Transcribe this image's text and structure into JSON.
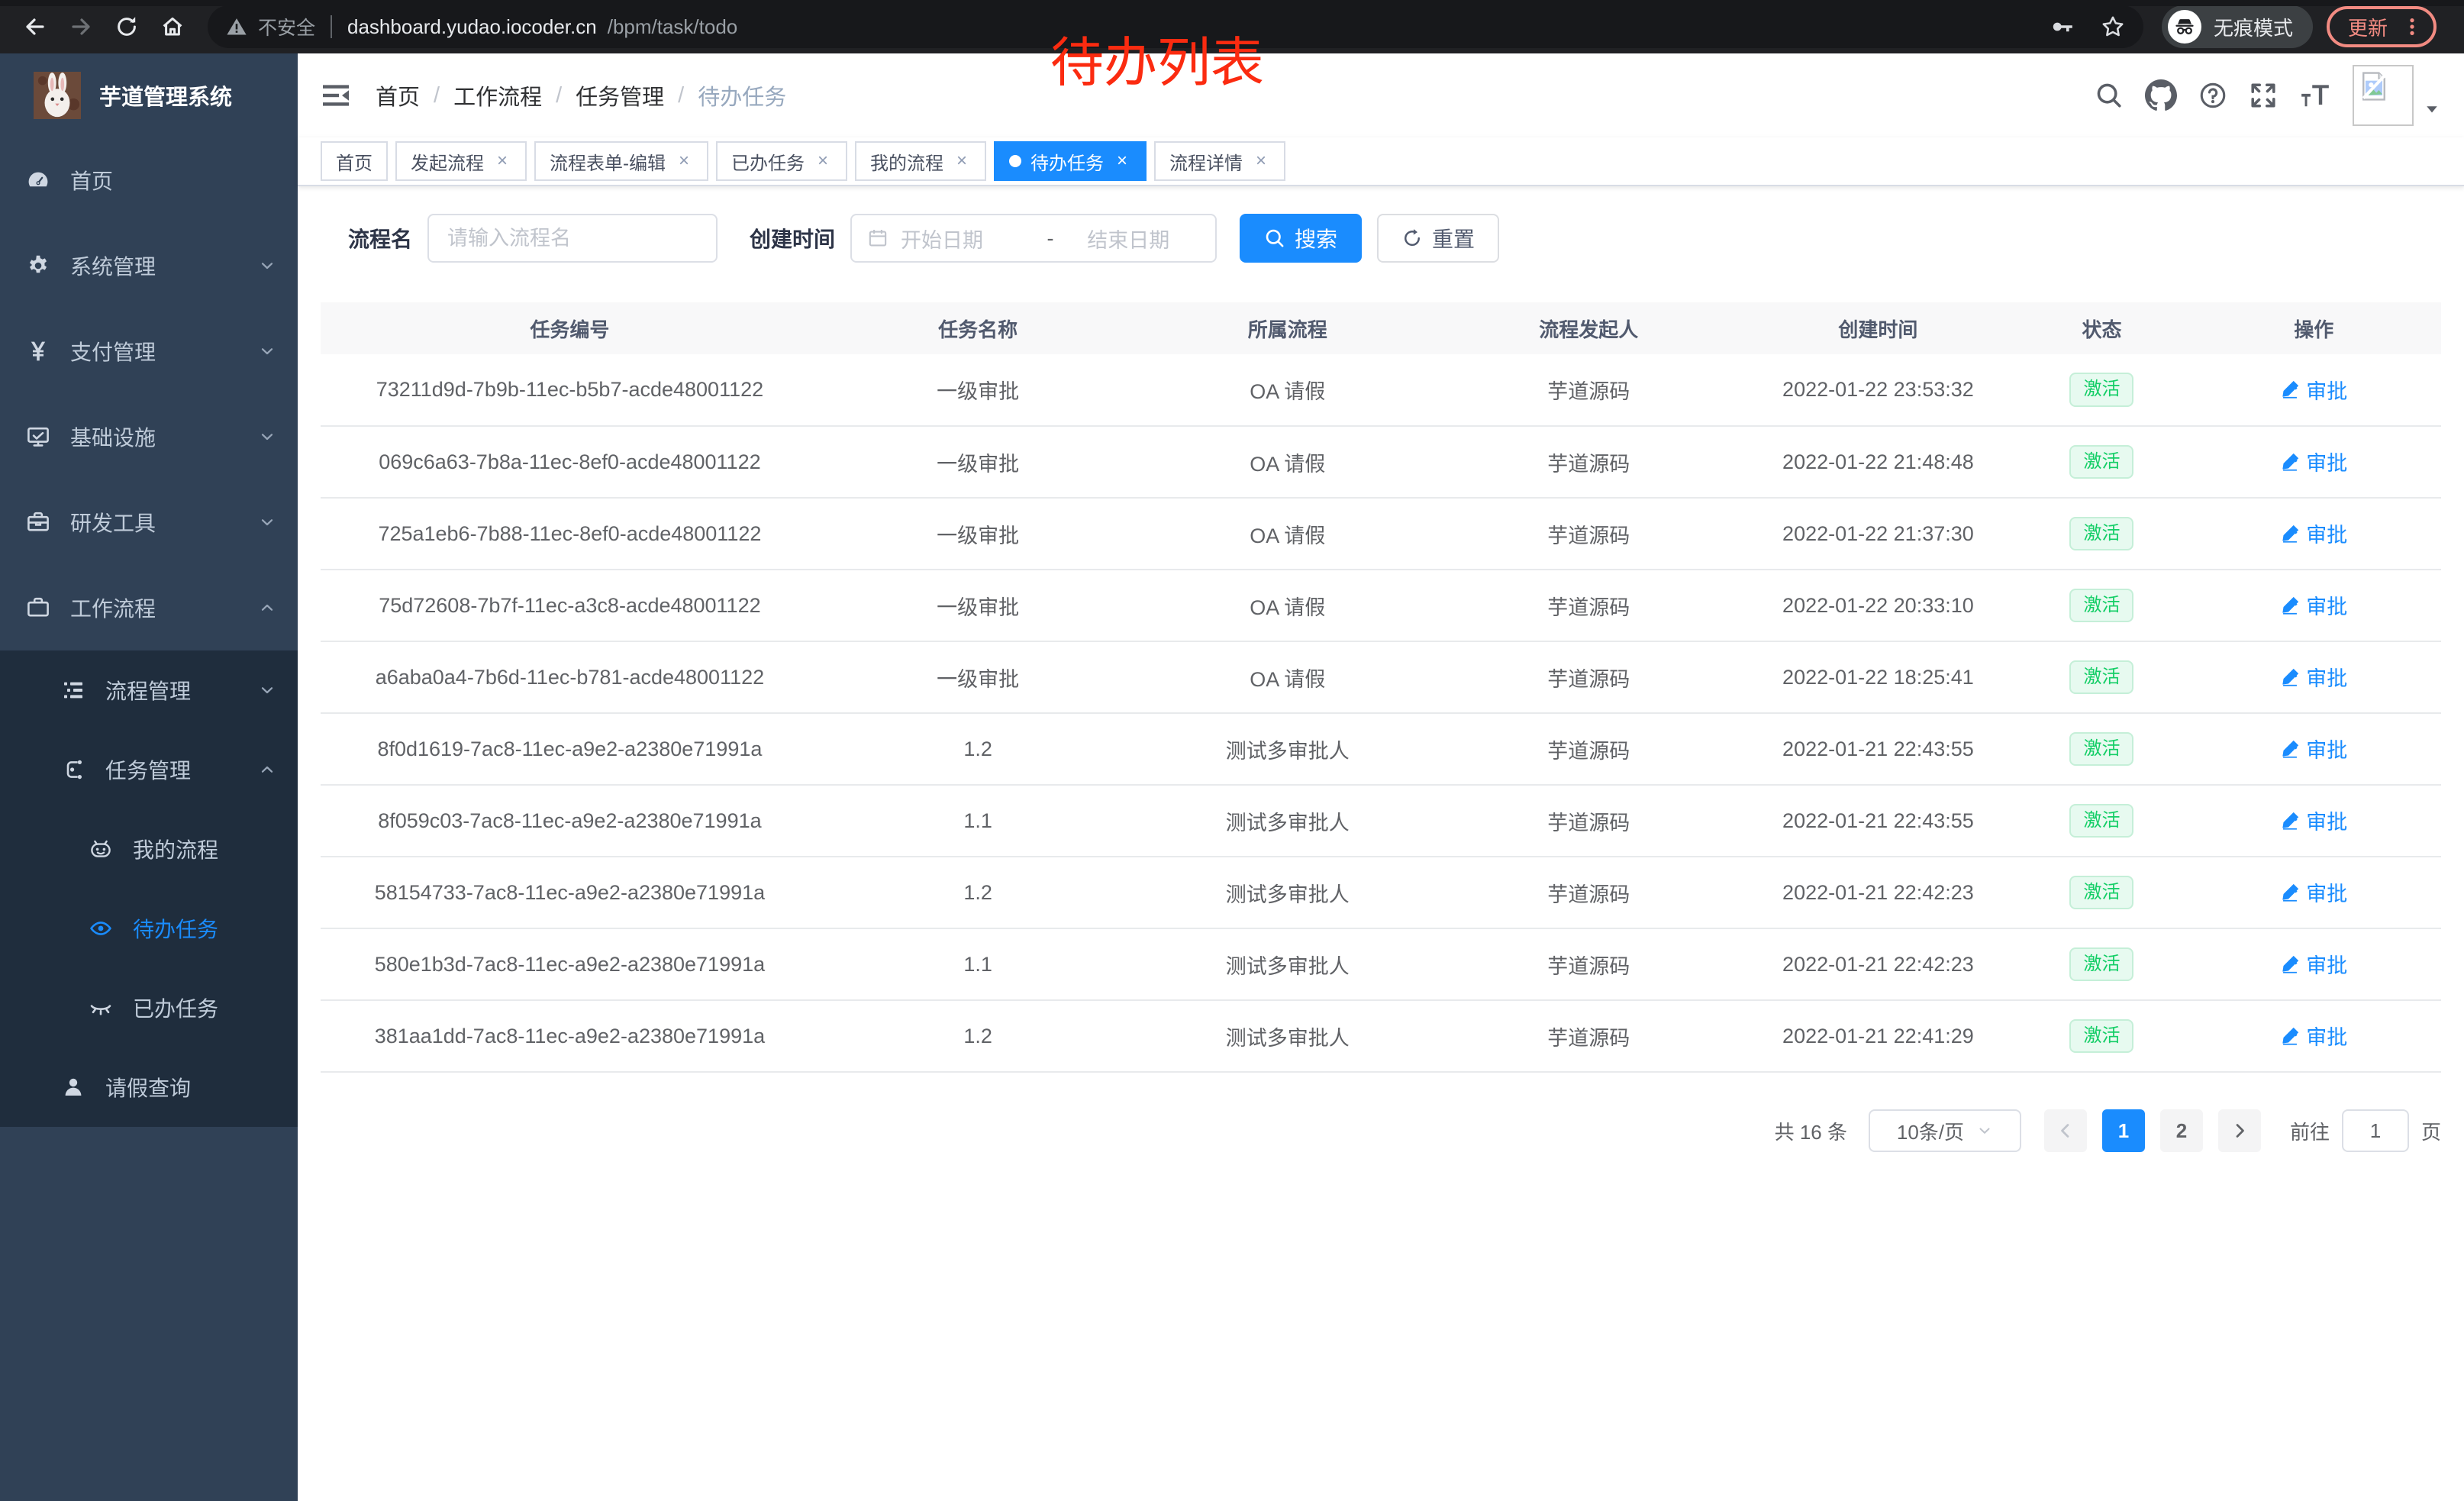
{
  "browser": {
    "security_label": "不安全",
    "url_host": "dashboard.yudao.iocoder.cn",
    "url_path": "/bpm/task/todo",
    "incognito_label": "无痕模式",
    "update_label": "更新"
  },
  "annotation": {
    "text": "待办列表"
  },
  "glyphs": {
    "close": "×"
  },
  "sidebar": {
    "title": "芋道管理系统",
    "items": [
      {
        "label": "首页",
        "icon": "dashboard-icon",
        "level": 1
      },
      {
        "label": "系统管理",
        "icon": "gear-icon",
        "level": 1,
        "chevron": "chevron-down-icon"
      },
      {
        "label": "支付管理",
        "icon": "yuan-icon",
        "level": 1,
        "chevron": "chevron-down-icon"
      },
      {
        "label": "基础设施",
        "icon": "monitor-icon",
        "level": 1,
        "chevron": "chevron-down-icon"
      },
      {
        "label": "研发工具",
        "icon": "toolbox-icon",
        "level": 1,
        "chevron": "chevron-down-icon"
      },
      {
        "label": "工作流程",
        "icon": "briefcase-icon",
        "level": 1,
        "chevron": "chevron-up-icon"
      }
    ],
    "sub_items": [
      {
        "label": "流程管理",
        "icon": "list-tree-icon",
        "level": 2,
        "chevron": "chevron-down-icon"
      },
      {
        "label": "任务管理",
        "icon": "flow-icon",
        "level": 2,
        "chevron": "chevron-up-icon"
      },
      {
        "label": "我的流程",
        "icon": "robot-icon",
        "level": 3
      },
      {
        "label": "待办任务",
        "icon": "eye-open-icon",
        "level": 3,
        "active": true
      },
      {
        "label": "已办任务",
        "icon": "eye-closed-icon",
        "level": 3
      },
      {
        "label": "请假查询",
        "icon": "user-icon",
        "level": 2
      }
    ]
  },
  "navbar": {
    "separator": "/",
    "breadcrumb": [
      {
        "label": "首页"
      },
      {
        "label": "工作流程",
        "sep": true
      },
      {
        "label": "任务管理",
        "sep": true
      },
      {
        "label": "待办任务",
        "sep": true,
        "current": true
      }
    ]
  },
  "tabs": [
    {
      "label": "首页"
    },
    {
      "label": "发起流程",
      "closable": true
    },
    {
      "label": "流程表单-编辑",
      "closable": true
    },
    {
      "label": "已办任务",
      "closable": true
    },
    {
      "label": "我的流程",
      "closable": true
    },
    {
      "label": "待办任务",
      "closable": true,
      "active": true
    },
    {
      "label": "流程详情",
      "closable": true
    }
  ],
  "filters": {
    "name_label": "流程名",
    "name_placeholder": "请输入流程名",
    "time_label": "创建时间",
    "start_placeholder": "开始日期",
    "range_separator": "-",
    "end_placeholder": "结束日期",
    "search_label": "搜索",
    "reset_label": "重置"
  },
  "table": {
    "headers": [
      "任务编号",
      "任务名称",
      "所属流程",
      "流程发起人",
      "创建时间",
      "状态",
      "操作"
    ],
    "status_label": "激活",
    "action_label": "审批",
    "rows": [
      {
        "id": "73211d9d-7b9b-11ec-b5b7-acde48001122",
        "name": "一级审批",
        "process": "OA 请假",
        "starter": "芋道源码",
        "created": "2022-01-22 23:53:32",
        "status": "激活",
        "action": "审批"
      },
      {
        "id": "069c6a63-7b8a-11ec-8ef0-acde48001122",
        "name": "一级审批",
        "process": "OA 请假",
        "starter": "芋道源码",
        "created": "2022-01-22 21:48:48",
        "status": "激活",
        "action": "审批"
      },
      {
        "id": "725a1eb6-7b88-11ec-8ef0-acde48001122",
        "name": "一级审批",
        "process": "OA 请假",
        "starter": "芋道源码",
        "created": "2022-01-22 21:37:30",
        "status": "激活",
        "action": "审批"
      },
      {
        "id": "75d72608-7b7f-11ec-a3c8-acde48001122",
        "name": "一级审批",
        "process": "OA 请假",
        "starter": "芋道源码",
        "created": "2022-01-22 20:33:10",
        "status": "激活",
        "action": "审批"
      },
      {
        "id": "a6aba0a4-7b6d-11ec-b781-acde48001122",
        "name": "一级审批",
        "process": "OA 请假",
        "starter": "芋道源码",
        "created": "2022-01-22 18:25:41",
        "status": "激活",
        "action": "审批"
      },
      {
        "id": "8f0d1619-7ac8-11ec-a9e2-a2380e71991a",
        "name": "1.2",
        "process": "测试多审批人",
        "starter": "芋道源码",
        "created": "2022-01-21 22:43:55",
        "status": "激活",
        "action": "审批"
      },
      {
        "id": "8f059c03-7ac8-11ec-a9e2-a2380e71991a",
        "name": "1.1",
        "process": "测试多审批人",
        "starter": "芋道源码",
        "created": "2022-01-21 22:43:55",
        "status": "激活",
        "action": "审批"
      },
      {
        "id": "58154733-7ac8-11ec-a9e2-a2380e71991a",
        "name": "1.2",
        "process": "测试多审批人",
        "starter": "芋道源码",
        "created": "2022-01-21 22:42:23",
        "status": "激活",
        "action": "审批"
      },
      {
        "id": "580e1b3d-7ac8-11ec-a9e2-a2380e71991a",
        "name": "1.1",
        "process": "测试多审批人",
        "starter": "芋道源码",
        "created": "2022-01-21 22:42:23",
        "status": "激活",
        "action": "审批"
      },
      {
        "id": "381aa1dd-7ac8-11ec-a9e2-a2380e71991a",
        "name": "1.2",
        "process": "测试多审批人",
        "starter": "芋道源码",
        "created": "2022-01-21 22:41:29",
        "status": "激活",
        "action": "审批"
      }
    ]
  },
  "pagination": {
    "total": "共 16 条",
    "page_size": "10条/页",
    "pages": [
      {
        "num": "1",
        "active": true
      },
      {
        "num": "2"
      }
    ],
    "goto_label": "前往",
    "goto_value": "1",
    "page_unit": "页"
  },
  "colors": {
    "primary": "#1a8cfe",
    "success": "#13ce66",
    "sidebar": "#304156",
    "sidebar_sub": "#1f2d3d",
    "annotation": "#fb2b10"
  }
}
